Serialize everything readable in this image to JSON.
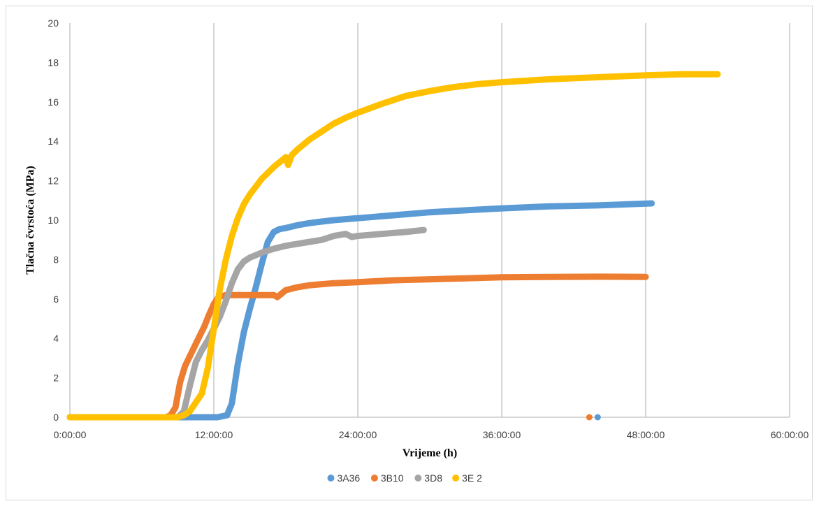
{
  "chart_data": {
    "type": "line",
    "title": "",
    "xlabel": "Vrijeme (h)",
    "ylabel": "Tlačna čvrstoća (MPa)",
    "x_unit": "hours",
    "xlim": [
      0,
      60
    ],
    "ylim": [
      0,
      20
    ],
    "x_ticks": [
      0,
      12,
      24,
      36,
      48,
      60
    ],
    "x_tick_labels": [
      "0:00:00",
      "12:00:00",
      "24:00:00",
      "36:00:00",
      "48:00:00",
      "60:00:00"
    ],
    "y_ticks": [
      0,
      2,
      4,
      6,
      8,
      10,
      12,
      14,
      16,
      18,
      20
    ],
    "y_tick_labels": [
      "0",
      "2",
      "4",
      "6",
      "8",
      "10",
      "12",
      "14",
      "16",
      "18",
      "20"
    ],
    "grid": "vertical",
    "legend_position": "bottom",
    "series": [
      {
        "name": "3A36",
        "color": "#5b9bd5",
        "x": [
          0,
          8,
          10,
          12.3,
          13.1,
          13.5,
          14,
          14.5,
          15,
          15.5,
          16,
          16.5,
          17.0,
          17.5,
          18.0,
          19,
          20,
          21,
          22,
          24,
          27,
          30,
          33,
          36,
          40,
          44,
          48.5
        ],
        "y": [
          0,
          0,
          0,
          0,
          0.1,
          0.7,
          2.7,
          4.3,
          5.5,
          6.6,
          7.8,
          8.9,
          9.4,
          9.55,
          9.6,
          9.75,
          9.85,
          9.93,
          10.0,
          10.1,
          10.25,
          10.4,
          10.5,
          10.6,
          10.7,
          10.75,
          10.85
        ]
      },
      {
        "name": "3B10",
        "color": "#ed7d31",
        "x": [
          0,
          8,
          8.4,
          8.8,
          9.2,
          9.6,
          10.0,
          10.4,
          10.8,
          11.2,
          11.6,
          12.0,
          12.4,
          13,
          14,
          15,
          16,
          17,
          17.3,
          18,
          19,
          20,
          21,
          22,
          24,
          27,
          30,
          33,
          36,
          40,
          44,
          48
        ],
        "y": [
          0,
          0,
          0.1,
          0.5,
          1.8,
          2.6,
          3.1,
          3.6,
          4.1,
          4.6,
          5.2,
          5.75,
          6.1,
          6.2,
          6.2,
          6.2,
          6.2,
          6.2,
          6.1,
          6.45,
          6.6,
          6.7,
          6.75,
          6.8,
          6.85,
          6.95,
          7.0,
          7.05,
          7.1,
          7.12,
          7.13,
          7.12
        ]
      },
      {
        "name": "3D8",
        "color": "#a5a5a5",
        "x": [
          0,
          9,
          9.5,
          10,
          10.5,
          11,
          11.5,
          12,
          12.5,
          13,
          13.5,
          14,
          14.5,
          15,
          16,
          17,
          18,
          19,
          20,
          21,
          22,
          23,
          23.5,
          24,
          25,
          26,
          28,
          29.5
        ],
        "y": [
          0,
          0,
          0.3,
          1.6,
          2.8,
          3.4,
          3.9,
          4.5,
          5.1,
          5.9,
          6.8,
          7.5,
          7.9,
          8.1,
          8.35,
          8.55,
          8.7,
          8.8,
          8.9,
          9.0,
          9.2,
          9.3,
          9.15,
          9.2,
          9.25,
          9.3,
          9.4,
          9.5
        ]
      },
      {
        "name": "3E 2",
        "color": "#ffc000",
        "x": [
          0,
          9,
          9.5,
          10,
          11,
          11.5,
          12,
          12.5,
          13,
          13.5,
          14,
          14.5,
          15,
          16,
          17,
          18,
          18.2,
          18.5,
          19,
          20,
          21,
          22,
          23,
          24,
          26,
          28,
          30,
          32,
          34,
          36,
          40,
          44,
          48,
          51,
          54
        ],
        "y": [
          0,
          0,
          0.1,
          0.3,
          1.2,
          2.5,
          4.5,
          6.5,
          8.0,
          9.2,
          10.1,
          10.8,
          11.3,
          12.1,
          12.7,
          13.2,
          12.8,
          13.3,
          13.6,
          14.1,
          14.5,
          14.9,
          15.2,
          15.45,
          15.9,
          16.3,
          16.55,
          16.75,
          16.9,
          17.0,
          17.15,
          17.25,
          17.35,
          17.4,
          17.4
        ]
      }
    ],
    "outlier_points": [
      {
        "series": "3B10",
        "x": 43.3,
        "y": 0
      },
      {
        "series": "3A36",
        "x": 44.0,
        "y": 0
      }
    ]
  }
}
